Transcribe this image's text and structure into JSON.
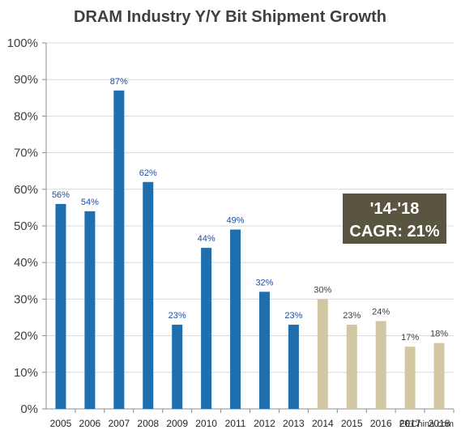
{
  "chart_data": {
    "type": "bar",
    "title": "DRAM Industry Y/Y Bit Shipment Growth",
    "xlabel": "",
    "ylabel": "",
    "ylim": [
      0,
      100
    ],
    "y_tick_labels": [
      "0%",
      "10%",
      "20%",
      "30%",
      "40%",
      "50%",
      "60%",
      "70%",
      "80%",
      "90%",
      "100%"
    ],
    "categories": [
      "2005",
      "2006",
      "2007",
      "2008",
      "2009",
      "2010",
      "2011",
      "2012",
      "2013",
      "2014",
      "2015",
      "2016",
      "2017",
      "2018"
    ],
    "values": [
      56,
      54,
      87,
      62,
      23,
      44,
      49,
      32,
      23,
      30,
      23,
      24,
      17,
      18
    ],
    "data_labels": [
      "56%",
      "54%",
      "87%",
      "62%",
      "23%",
      "44%",
      "49%",
      "32%",
      "23%",
      "30%",
      "23%",
      "24%",
      "17%",
      "18%"
    ],
    "bar_colors": [
      "#1f6fae",
      "#1f6fae",
      "#1f6fae",
      "#1f6fae",
      "#1f6fae",
      "#1f6fae",
      "#1f6fae",
      "#1f6fae",
      "#1f6fae",
      "#d1c7a2",
      "#d1c7a2",
      "#d1c7a2",
      "#d1c7a2",
      "#d1c7a2"
    ],
    "label_colors": [
      "#1f4e9a",
      "#1f4e9a",
      "#1f4e9a",
      "#1f4e9a",
      "#1f4e9a",
      "#1f4e9a",
      "#1f4e9a",
      "#1f4e9a",
      "#1f4e9a",
      "#404040",
      "#404040",
      "#404040",
      "#404040",
      "#404040"
    ],
    "grid": true,
    "annotation": {
      "line1": "'14-'18",
      "line2": "CAGR: 21%",
      "background": "#5a5541"
    },
    "watermark": "EEChina.com"
  }
}
